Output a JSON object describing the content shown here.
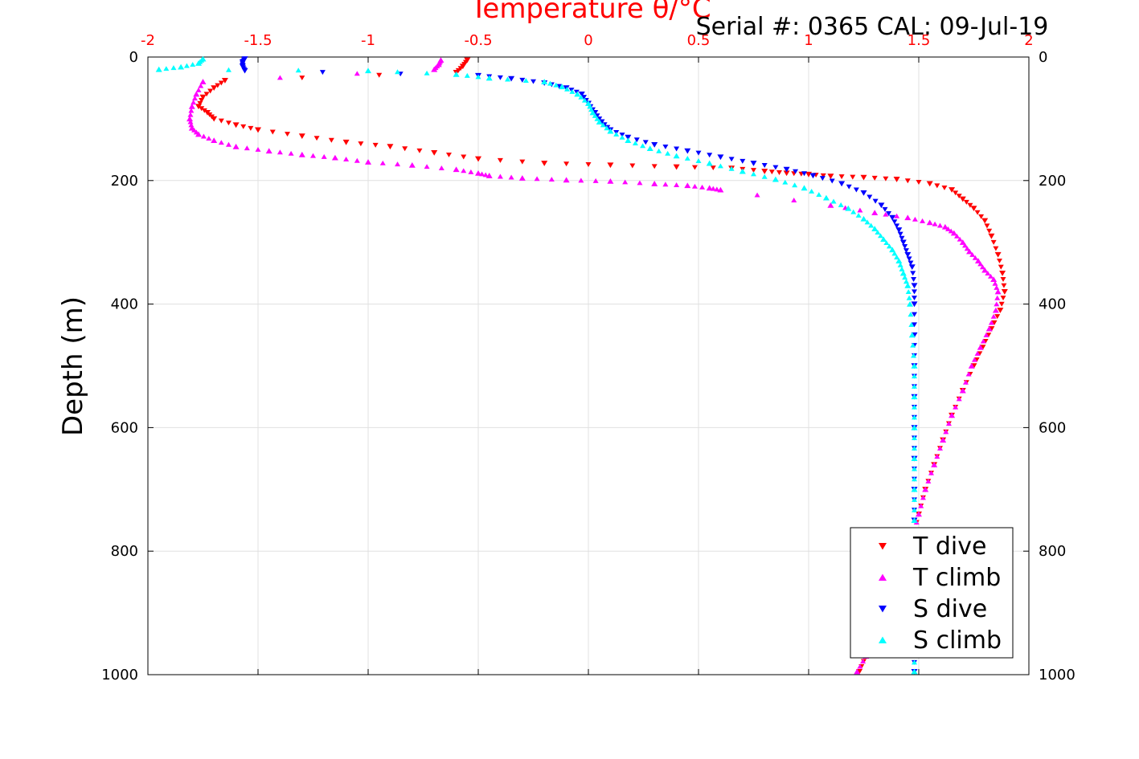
{
  "chart_data": {
    "type": "scatter",
    "title": "Temperature θ/°C",
    "header_text": "Serial #: 0365  CAL: 09-Jul-19",
    "ylabel": "Depth (m)",
    "xlim": [
      -2,
      2
    ],
    "ylim": [
      1000,
      0
    ],
    "x_ticks": [
      "-2",
      "-1.5",
      "-1",
      "-0.5",
      "0",
      "0.5",
      "1",
      "1.5",
      "2"
    ],
    "y_ticks": [
      "0",
      "200",
      "400",
      "600",
      "800",
      "1000"
    ],
    "grid": true,
    "legend_position": "bottom-right",
    "colors": {
      "title": "#ff0000",
      "grid": "#e0e0e0"
    },
    "series": [
      {
        "name": "T dive",
        "marker": "triangle-down",
        "color": "#ff0000",
        "points": [
          [
            -0.55,
            5
          ],
          [
            -0.57,
            15
          ],
          [
            -0.6,
            25
          ],
          [
            -1.65,
            38
          ],
          [
            -1.7,
            50
          ],
          [
            -1.75,
            65
          ],
          [
            -1.77,
            80
          ],
          [
            -1.73,
            90
          ],
          [
            -1.7,
            100
          ],
          [
            -1.6,
            110
          ],
          [
            -1.5,
            118
          ],
          [
            -1.3,
            128
          ],
          [
            -1.1,
            138
          ],
          [
            -0.9,
            145
          ],
          [
            -0.7,
            155
          ],
          [
            -0.5,
            165
          ],
          [
            -0.2,
            172
          ],
          [
            0.1,
            175
          ],
          [
            0.4,
            178
          ],
          [
            0.65,
            180
          ],
          [
            0.8,
            185
          ],
          [
            0.9,
            188
          ],
          [
            1.0,
            190
          ],
          [
            1.1,
            193
          ],
          [
            1.25,
            195
          ],
          [
            1.4,
            198
          ],
          [
            1.55,
            205
          ],
          [
            1.65,
            215
          ],
          [
            1.7,
            230
          ],
          [
            1.75,
            245
          ],
          [
            1.8,
            265
          ],
          [
            1.83,
            290
          ],
          [
            1.86,
            320
          ],
          [
            1.88,
            350
          ],
          [
            1.89,
            380
          ],
          [
            1.87,
            410
          ],
          [
            1.83,
            440
          ],
          [
            1.79,
            470
          ],
          [
            1.75,
            500
          ],
          [
            1.7,
            540
          ],
          [
            1.65,
            580
          ],
          [
            1.61,
            620
          ],
          [
            1.57,
            660
          ],
          [
            1.53,
            700
          ],
          [
            1.5,
            740
          ],
          [
            1.47,
            780
          ],
          [
            1.43,
            820
          ],
          [
            1.39,
            860
          ],
          [
            1.35,
            900
          ],
          [
            1.3,
            940
          ],
          [
            1.26,
            970
          ],
          [
            1.23,
            995
          ]
        ]
      },
      {
        "name": "T climb",
        "marker": "triangle-up",
        "color": "#ff00ff",
        "points": [
          [
            -0.67,
            5
          ],
          [
            -0.68,
            12
          ],
          [
            -0.7,
            20
          ],
          [
            -1.75,
            40
          ],
          [
            -1.78,
            60
          ],
          [
            -1.8,
            80
          ],
          [
            -1.81,
            100
          ],
          [
            -1.8,
            115
          ],
          [
            -1.77,
            125
          ],
          [
            -1.7,
            135
          ],
          [
            -1.6,
            145
          ],
          [
            -1.45,
            152
          ],
          [
            -1.3,
            158
          ],
          [
            -1.15,
            163
          ],
          [
            -1.0,
            170
          ],
          [
            -0.8,
            175
          ],
          [
            -0.6,
            182
          ],
          [
            -0.5,
            188
          ],
          [
            -0.45,
            192
          ],
          [
            -0.3,
            196
          ],
          [
            -0.1,
            199
          ],
          [
            0.1,
            201
          ],
          [
            0.3,
            205
          ],
          [
            0.45,
            208
          ],
          [
            0.55,
            212
          ],
          [
            0.6,
            215
          ],
          [
            1.1,
            240
          ],
          [
            1.3,
            252
          ],
          [
            1.45,
            260
          ],
          [
            1.55,
            268
          ],
          [
            1.62,
            275
          ],
          [
            1.66,
            285
          ],
          [
            1.7,
            300
          ],
          [
            1.73,
            315
          ],
          [
            1.77,
            330
          ],
          [
            1.8,
            345
          ],
          [
            1.84,
            360
          ],
          [
            1.86,
            380
          ],
          [
            1.85,
            410
          ],
          [
            1.82,
            440
          ],
          [
            1.78,
            470
          ],
          [
            1.74,
            500
          ],
          [
            1.7,
            540
          ],
          [
            1.65,
            580
          ],
          [
            1.61,
            620
          ],
          [
            1.57,
            660
          ],
          [
            1.53,
            700
          ],
          [
            1.5,
            740
          ],
          [
            1.47,
            780
          ],
          [
            1.43,
            820
          ],
          [
            1.39,
            860
          ],
          [
            1.35,
            900
          ],
          [
            1.3,
            940
          ],
          [
            1.26,
            970
          ],
          [
            1.22,
            995
          ]
        ]
      },
      {
        "name": "S dive",
        "marker": "triangle-down",
        "color": "#0000ff",
        "points": [
          [
            -1.56,
            3
          ],
          [
            -1.57,
            8
          ],
          [
            -1.57,
            15
          ],
          [
            -1.56,
            22
          ],
          [
            -0.5,
            30
          ],
          [
            -0.35,
            35
          ],
          [
            -0.2,
            42
          ],
          [
            -0.1,
            50
          ],
          [
            -0.03,
            60
          ],
          [
            0.0,
            75
          ],
          [
            0.03,
            90
          ],
          [
            0.06,
            105
          ],
          [
            0.1,
            118
          ],
          [
            0.18,
            130
          ],
          [
            0.3,
            142
          ],
          [
            0.45,
            152
          ],
          [
            0.6,
            162
          ],
          [
            0.75,
            172
          ],
          [
            0.9,
            182
          ],
          [
            1.02,
            192
          ],
          [
            1.15,
            205
          ],
          [
            1.25,
            220
          ],
          [
            1.33,
            240
          ],
          [
            1.38,
            260
          ],
          [
            1.41,
            280
          ],
          [
            1.43,
            300
          ],
          [
            1.45,
            320
          ],
          [
            1.47,
            340
          ],
          [
            1.48,
            370
          ],
          [
            1.48,
            400
          ],
          [
            1.48,
            450
          ],
          [
            1.48,
            500
          ],
          [
            1.48,
            550
          ],
          [
            1.48,
            600
          ],
          [
            1.48,
            650
          ],
          [
            1.48,
            700
          ],
          [
            1.48,
            750
          ],
          [
            1.48,
            800
          ],
          [
            1.48,
            850
          ],
          [
            1.48,
            900
          ],
          [
            1.48,
            950
          ],
          [
            1.48,
            995
          ]
        ]
      },
      {
        "name": "S climb",
        "marker": "triangle-up",
        "color": "#00ffff",
        "points": [
          [
            -1.75,
            3
          ],
          [
            -1.77,
            10
          ],
          [
            -1.85,
            16
          ],
          [
            -1.95,
            20
          ],
          [
            -1.0,
            22
          ],
          [
            -0.6,
            28
          ],
          [
            -0.45,
            34
          ],
          [
            -0.2,
            40
          ],
          [
            -0.12,
            48
          ],
          [
            -0.05,
            60
          ],
          [
            0.0,
            75
          ],
          [
            0.02,
            90
          ],
          [
            0.05,
            105
          ],
          [
            0.1,
            120
          ],
          [
            0.18,
            135
          ],
          [
            0.28,
            148
          ],
          [
            0.4,
            160
          ],
          [
            0.55,
            172
          ],
          [
            0.7,
            185
          ],
          [
            0.85,
            198
          ],
          [
            0.98,
            212
          ],
          [
            1.08,
            228
          ],
          [
            1.18,
            245
          ],
          [
            1.25,
            262
          ],
          [
            1.3,
            278
          ],
          [
            1.34,
            295
          ],
          [
            1.38,
            312
          ],
          [
            1.41,
            330
          ],
          [
            1.43,
            350
          ],
          [
            1.45,
            370
          ],
          [
            1.46,
            400
          ],
          [
            1.47,
            450
          ],
          [
            1.48,
            500
          ],
          [
            1.48,
            550
          ],
          [
            1.48,
            600
          ],
          [
            1.48,
            650
          ],
          [
            1.48,
            700
          ],
          [
            1.48,
            750
          ],
          [
            1.48,
            800
          ],
          [
            1.48,
            850
          ],
          [
            1.48,
            900
          ],
          [
            1.48,
            950
          ],
          [
            1.48,
            995
          ]
        ]
      }
    ]
  }
}
